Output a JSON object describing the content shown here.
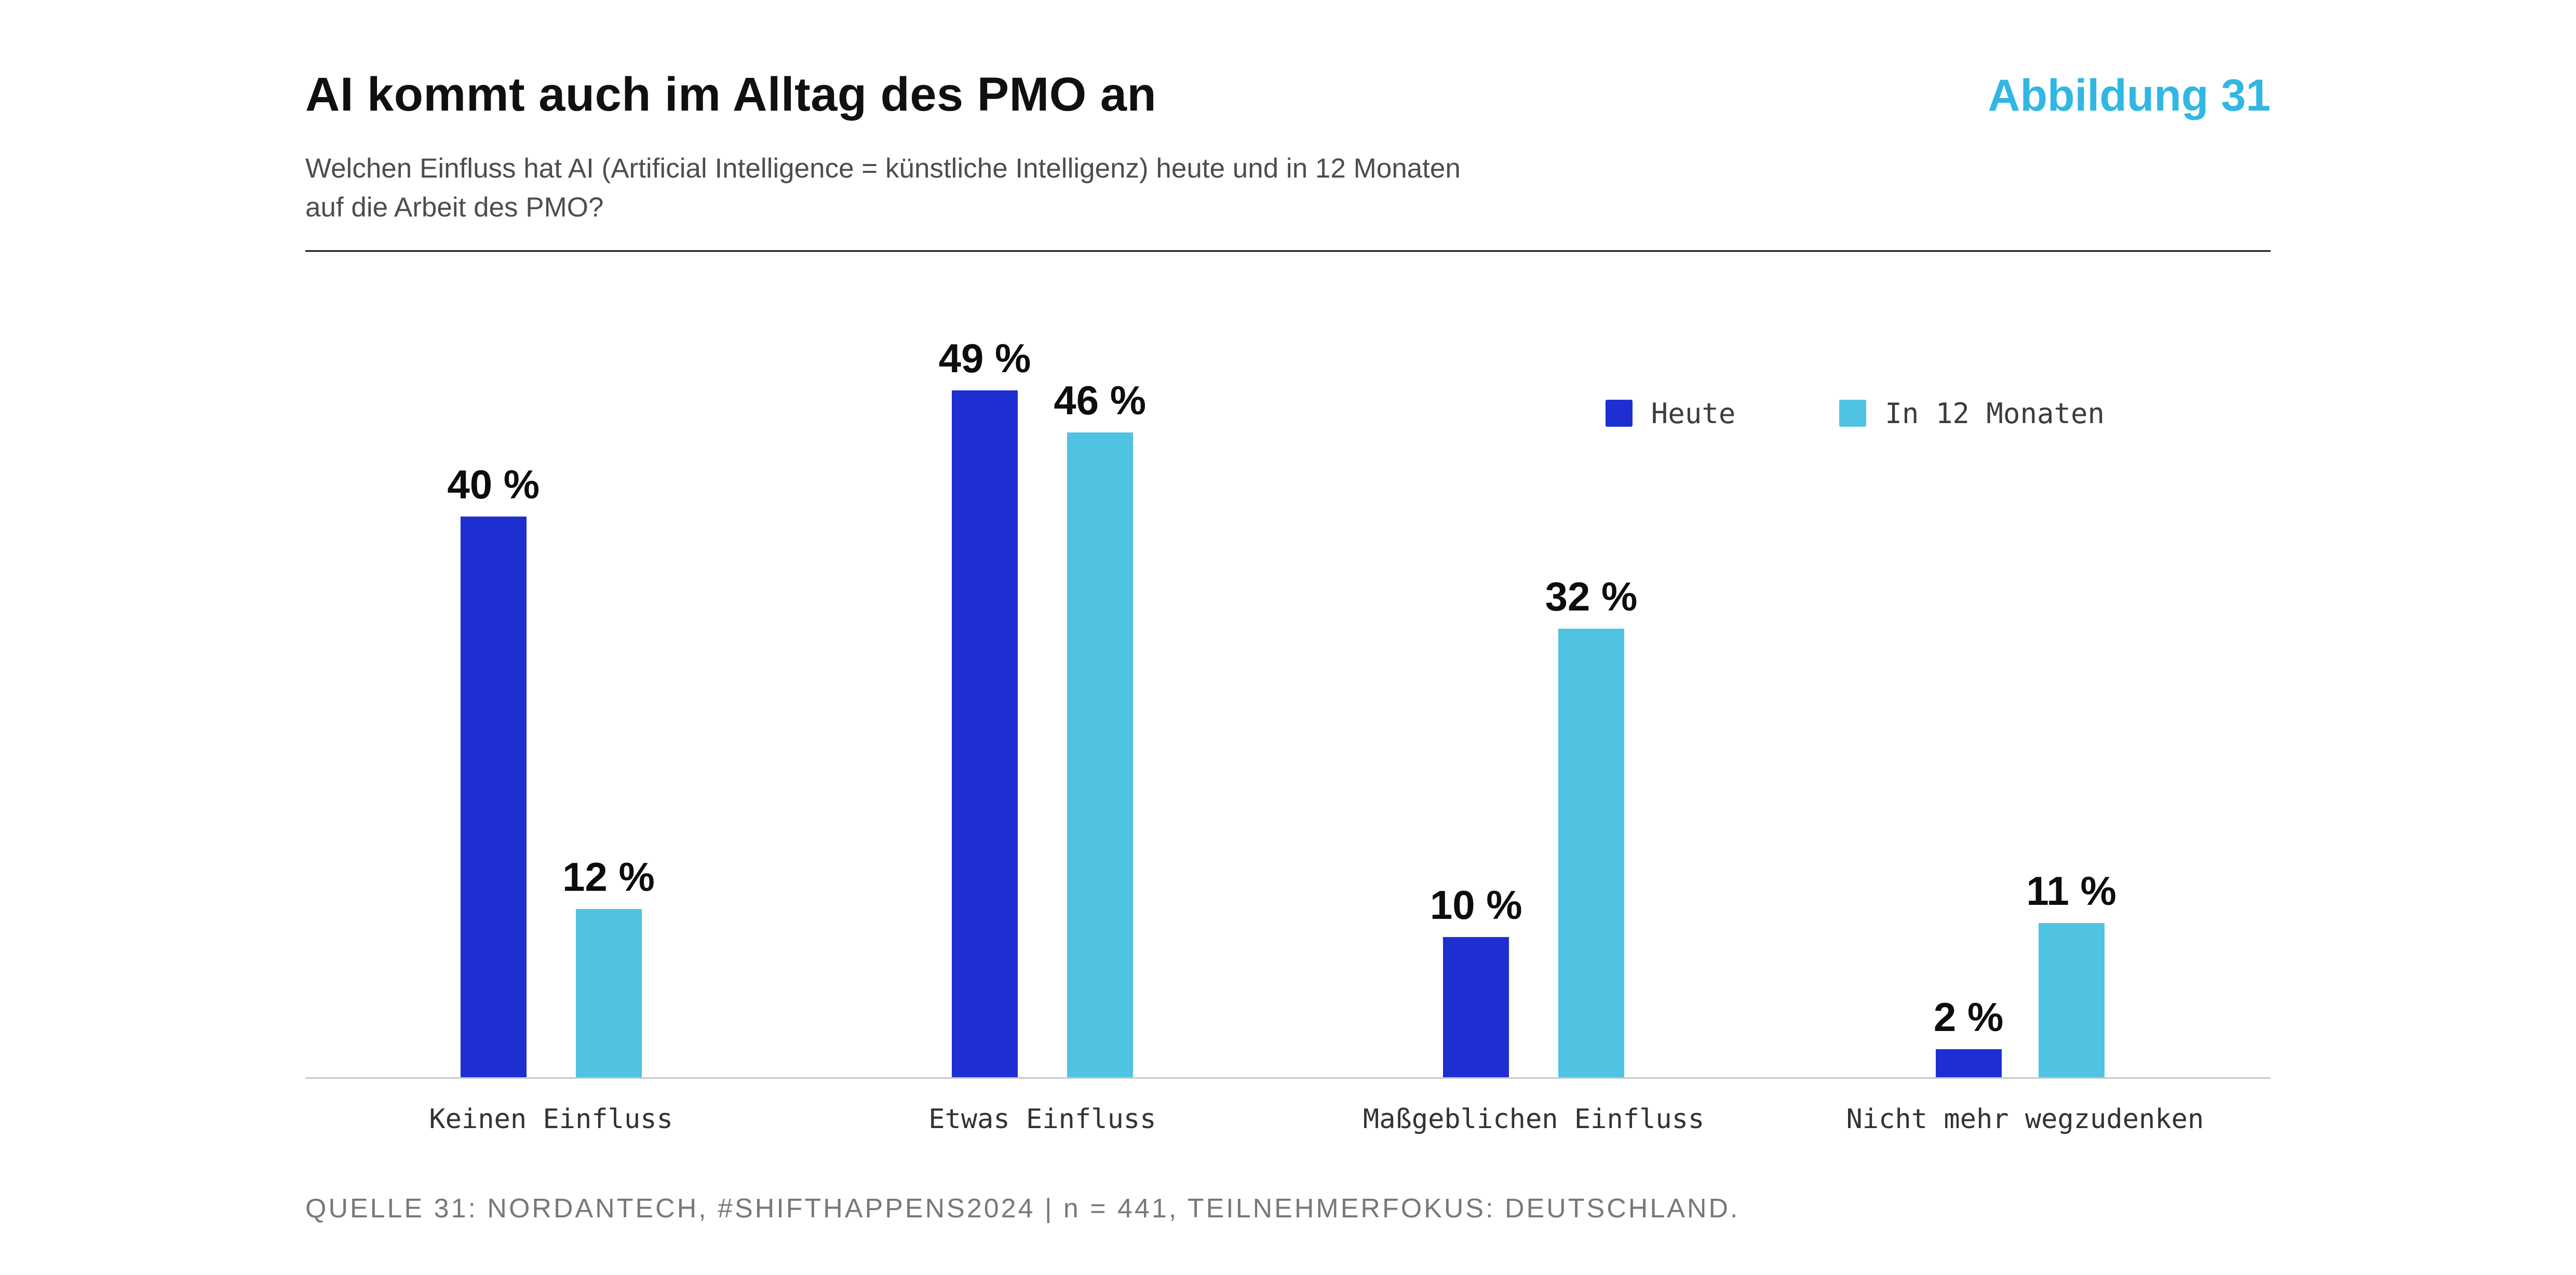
{
  "header": {
    "title": "AI kommt auch im Alltag des PMO an",
    "figure_label": "Abbildung 31",
    "subtitle_lines": {
      "0": "Welchen Einfluss hat AI (Artificial Intelligence = künstliche Intelligenz) heute und in 12 Monaten",
      "1": "auf die Arbeit des PMO?"
    }
  },
  "footer": {
    "source": "QUELLE 31: NORDANTECH, #SHIFTHAPPENS2024 | n = 441, TEILNEHMERFOKUS: DEUTSCHLAND."
  },
  "colors": {
    "accent": "#31b7e3",
    "heute": "#1e2fd2",
    "in12monaten": "#4fc3e1",
    "axis": "#c9c9c9"
  },
  "chart_data": {
    "type": "bar",
    "title": "AI kommt auch im Alltag des PMO an",
    "categories": [
      "Keinen Einfluss",
      "Etwas Einfluss",
      "Maßgeblichen Einfluss",
      "Nicht mehr wegzudenken"
    ],
    "series": [
      {
        "name": "Heute",
        "color": "#1e2fd2",
        "values": [
          40,
          49,
          10,
          2
        ]
      },
      {
        "name": "In 12 Monaten",
        "color": "#4fc3e1",
        "values": [
          12,
          46,
          32,
          11
        ]
      }
    ],
    "value_label_suffix": " %",
    "xlabel": "",
    "ylabel": "",
    "ylim": [
      0,
      54
    ],
    "grid": false,
    "legend_position": "top-right"
  }
}
